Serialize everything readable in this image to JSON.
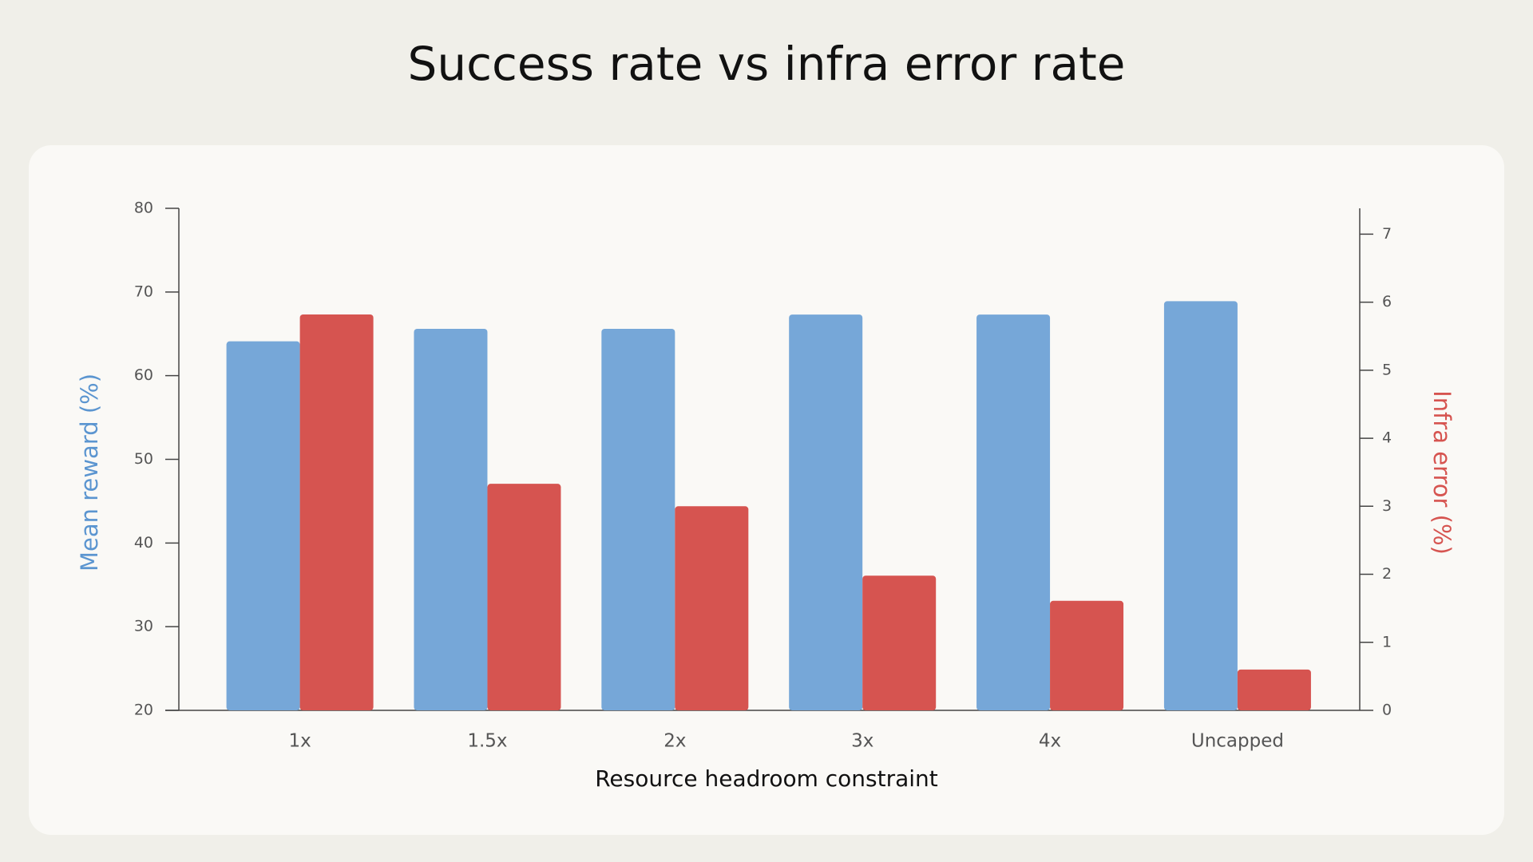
{
  "chart_data": {
    "type": "bar",
    "title": "Success rate vs infra error rate",
    "x_label": "Resource headroom constraint",
    "y_label": "Mean reward (%)",
    "y2_label": "Infra error (%)",
    "categories": [
      "1x",
      "1.5x",
      "2x",
      "3x",
      "4x",
      "Uncapped"
    ],
    "series": [
      {
        "name": "Mean reward (%)",
        "color": "#76a7d8",
        "axis": "y",
        "values": [
          64.1,
          65.6,
          65.6,
          67.3,
          67.3,
          68.9
        ]
      },
      {
        "name": "Infra error (%)",
        "color": "#d65450",
        "axis": "y2",
        "values": [
          5.82,
          3.33,
          3.0,
          1.98,
          1.61,
          0.6
        ]
      }
    ],
    "ylim": [
      20,
      80
    ],
    "yticks": [
      20,
      30,
      40,
      50,
      60,
      70,
      80
    ],
    "y2lim": [
      0,
      7.38
    ],
    "y2ticks": [
      0,
      1,
      2,
      3,
      4,
      5,
      6,
      7
    ],
    "grid": false
  }
}
